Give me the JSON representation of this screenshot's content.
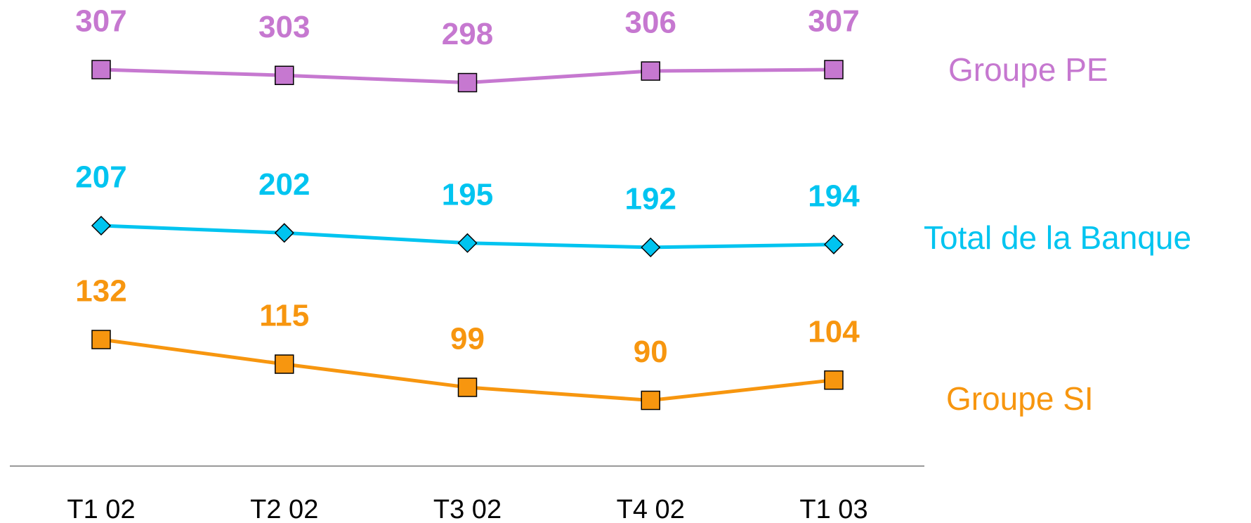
{
  "chart_data": {
    "type": "line",
    "categories": [
      "T1 02",
      "T2 02",
      "T3 02",
      "T4 02",
      "T1 03"
    ],
    "series": [
      {
        "name": "Groupe PE",
        "color": "#c678d0",
        "marker": "square",
        "values": [
          307,
          303,
          298,
          306,
          307
        ]
      },
      {
        "name": "Total de la Banque",
        "color": "#00c4f0",
        "marker": "diamond",
        "values": [
          207,
          202,
          195,
          192,
          194
        ]
      },
      {
        "name": "Groupe SI",
        "color": "#f7960f",
        "marker": "square",
        "values": [
          132,
          115,
          99,
          90,
          104
        ]
      }
    ]
  }
}
